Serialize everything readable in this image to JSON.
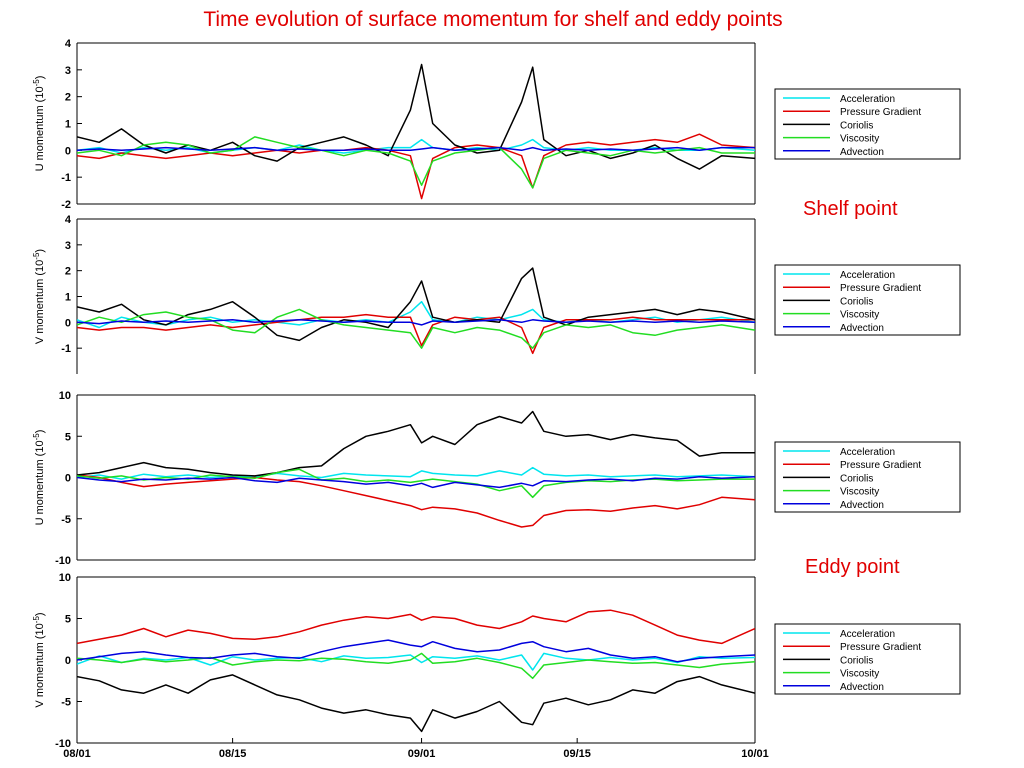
{
  "title": "Time evolution of surface momentum for shelf and eddy points",
  "annotations": {
    "shelf": "Shelf point",
    "eddy": "Eddy point"
  },
  "legend_entries": [
    {
      "name": "Acceleration",
      "color": "#00e5ee"
    },
    {
      "name": "Pressure Gradient",
      "color": "#e00000"
    },
    {
      "name": "Coriolis",
      "color": "#000000"
    },
    {
      "name": "Viscosity",
      "color": "#22dd22"
    },
    {
      "name": "Advection",
      "color": "#0000dd"
    }
  ],
  "chart_data": [
    {
      "type": "line",
      "ylabel": "U momentum (10^-5)",
      "ylim": [
        -2,
        4
      ],
      "yticks": [
        -2,
        -1,
        0,
        1,
        2,
        3,
        4
      ],
      "xticks": [],
      "grid": false,
      "legend_position": "right",
      "x": [
        0,
        2,
        4,
        6,
        8,
        10,
        12,
        14,
        16,
        18,
        20,
        22,
        24,
        26,
        28,
        30,
        31,
        32,
        34,
        36,
        38,
        40,
        41,
        42,
        44,
        46,
        48,
        50,
        52,
        54,
        56,
        58,
        61
      ],
      "series": [
        {
          "name": "Acceleration",
          "color": "#00e5ee",
          "values": [
            0.0,
            0.1,
            -0.1,
            0.1,
            0.0,
            0.1,
            -0.1,
            0.0,
            0.1,
            0.0,
            0.2,
            0.0,
            -0.1,
            0.0,
            0.1,
            0.1,
            0.4,
            0.1,
            0.0,
            0.1,
            0.0,
            0.2,
            0.4,
            0.1,
            0.0,
            0.1,
            0.0,
            0.0,
            0.1,
            0.0,
            0.0,
            0.1,
            0.0
          ]
        },
        {
          "name": "Pressure Gradient",
          "color": "#e00000",
          "values": [
            -0.2,
            -0.3,
            -0.1,
            -0.2,
            -0.3,
            -0.2,
            -0.1,
            -0.2,
            -0.1,
            0.0,
            -0.1,
            0.0,
            0.0,
            0.1,
            0.0,
            -0.2,
            -1.8,
            -0.3,
            0.1,
            0.2,
            0.1,
            -0.2,
            -1.4,
            -0.2,
            0.2,
            0.3,
            0.2,
            0.3,
            0.4,
            0.3,
            0.6,
            0.2,
            0.1
          ]
        },
        {
          "name": "Coriolis",
          "color": "#000000",
          "values": [
            0.5,
            0.3,
            0.8,
            0.2,
            -0.1,
            0.2,
            0.0,
            0.3,
            -0.2,
            -0.4,
            0.1,
            0.3,
            0.5,
            0.2,
            -0.2,
            1.5,
            3.2,
            1.0,
            0.2,
            -0.1,
            0.0,
            1.8,
            3.1,
            0.4,
            -0.2,
            0.0,
            -0.3,
            -0.1,
            0.2,
            -0.3,
            -0.7,
            -0.2,
            -0.3
          ]
        },
        {
          "name": "Viscosity",
          "color": "#22dd22",
          "values": [
            -0.1,
            0.0,
            -0.2,
            0.2,
            0.3,
            0.2,
            -0.1,
            0.0,
            0.5,
            0.3,
            0.1,
            0.0,
            -0.2,
            0.0,
            -0.1,
            -0.4,
            -1.3,
            -0.4,
            -0.1,
            0.0,
            0.1,
            -0.7,
            -1.4,
            -0.3,
            0.0,
            -0.1,
            -0.2,
            0.0,
            -0.1,
            0.0,
            0.1,
            -0.1,
            -0.1
          ]
        },
        {
          "name": "Advection",
          "color": "#0000dd",
          "values": [
            0.0,
            0.05,
            0.0,
            0.05,
            0.1,
            0.05,
            0.0,
            0.05,
            0.1,
            0.0,
            0.05,
            0.0,
            0.0,
            0.05,
            0.0,
            0.0,
            0.05,
            0.1,
            0.0,
            0.05,
            0.1,
            0.0,
            0.1,
            0.0,
            0.05,
            0.0,
            0.05,
            0.0,
            0.05,
            0.1,
            0.0,
            0.1,
            0.1
          ]
        }
      ]
    },
    {
      "type": "line",
      "ylabel": "V momentum (10^-5)",
      "ylim": [
        -2,
        4
      ],
      "yticks": [
        -1,
        0,
        1,
        2,
        3,
        4
      ],
      "xticks": [],
      "grid": false,
      "legend_position": "right",
      "x": [
        0,
        2,
        4,
        6,
        8,
        10,
        12,
        14,
        16,
        18,
        20,
        22,
        24,
        26,
        28,
        30,
        31,
        32,
        34,
        36,
        38,
        40,
        41,
        42,
        44,
        46,
        48,
        50,
        52,
        54,
        56,
        58,
        61
      ],
      "series": [
        {
          "name": "Acceleration",
          "color": "#00e5ee",
          "values": [
            0.1,
            -0.2,
            0.2,
            0.0,
            -0.1,
            0.1,
            0.2,
            0.0,
            0.1,
            0.0,
            -0.1,
            0.1,
            0.0,
            0.1,
            0.0,
            0.4,
            0.8,
            0.1,
            0.0,
            0.2,
            0.1,
            0.3,
            0.5,
            0.1,
            0.0,
            0.1,
            0.0,
            0.1,
            0.2,
            0.0,
            0.1,
            0.2,
            0.0
          ]
        },
        {
          "name": "Pressure Gradient",
          "color": "#e00000",
          "values": [
            -0.2,
            -0.3,
            -0.2,
            -0.2,
            -0.3,
            -0.2,
            -0.1,
            -0.2,
            -0.1,
            0.0,
            0.1,
            0.2,
            0.2,
            0.3,
            0.2,
            0.2,
            -0.9,
            -0.1,
            0.2,
            0.1,
            0.2,
            -0.2,
            -1.2,
            -0.2,
            0.1,
            0.1,
            0.1,
            0.2,
            0.1,
            0.1,
            0.1,
            0.1,
            0.1
          ]
        },
        {
          "name": "Coriolis",
          "color": "#000000",
          "values": [
            0.6,
            0.4,
            0.7,
            0.1,
            -0.1,
            0.3,
            0.5,
            0.8,
            0.2,
            -0.5,
            -0.7,
            -0.2,
            0.1,
            0.0,
            -0.2,
            0.8,
            1.6,
            0.2,
            0.0,
            0.1,
            0.0,
            1.7,
            2.1,
            0.2,
            -0.1,
            0.2,
            0.3,
            0.4,
            0.5,
            0.3,
            0.5,
            0.4,
            0.1
          ]
        },
        {
          "name": "Viscosity",
          "color": "#22dd22",
          "values": [
            -0.1,
            0.2,
            0.0,
            0.3,
            0.4,
            0.2,
            0.1,
            -0.3,
            -0.4,
            0.2,
            0.5,
            0.1,
            -0.1,
            -0.2,
            -0.3,
            -0.4,
            -1.0,
            -0.2,
            -0.4,
            -0.2,
            -0.3,
            -0.6,
            -1.0,
            -0.4,
            -0.1,
            -0.2,
            -0.1,
            -0.4,
            -0.5,
            -0.3,
            -0.2,
            -0.1,
            -0.3
          ]
        },
        {
          "name": "Advection",
          "color": "#0000dd",
          "values": [
            0.0,
            -0.05,
            0.05,
            0.0,
            0.05,
            0.0,
            0.05,
            0.1,
            0.0,
            0.05,
            0.1,
            0.05,
            0.0,
            0.05,
            0.0,
            0.0,
            -0.1,
            0.05,
            0.0,
            0.05,
            0.1,
            0.0,
            0.1,
            0.05,
            0.0,
            0.05,
            0.0,
            0.05,
            0.0,
            0.05,
            0.0,
            0.05,
            0.0
          ]
        }
      ]
    },
    {
      "type": "line",
      "ylabel": "U momentum (10^-5)",
      "ylim": [
        -10,
        10
      ],
      "yticks": [
        -10,
        -5,
        0,
        5,
        10
      ],
      "xticks": [],
      "grid": false,
      "legend_position": "right",
      "x": [
        0,
        2,
        4,
        6,
        8,
        10,
        12,
        14,
        16,
        18,
        20,
        22,
        24,
        26,
        28,
        30,
        31,
        32,
        34,
        36,
        38,
        40,
        41,
        42,
        44,
        46,
        48,
        50,
        52,
        54,
        56,
        58,
        61
      ],
      "series": [
        {
          "name": "Acceleration",
          "color": "#00e5ee",
          "values": [
            0.0,
            0.3,
            -0.2,
            0.4,
            0.1,
            0.3,
            0.0,
            0.2,
            0.1,
            0.5,
            0.2,
            0.0,
            0.5,
            0.3,
            0.2,
            0.1,
            0.8,
            0.5,
            0.3,
            0.2,
            0.8,
            0.3,
            1.2,
            0.4,
            0.2,
            0.3,
            0.1,
            0.2,
            0.3,
            0.1,
            0.2,
            0.3,
            0.1
          ]
        },
        {
          "name": "Pressure Gradient",
          "color": "#e00000",
          "values": [
            0.3,
            0.0,
            -0.6,
            -1.1,
            -0.8,
            -0.6,
            -0.4,
            -0.2,
            0.0,
            -0.3,
            -0.5,
            -1.0,
            -1.6,
            -2.2,
            -2.8,
            -3.4,
            -3.9,
            -3.6,
            -3.8,
            -4.3,
            -5.2,
            -6.0,
            -5.8,
            -4.6,
            -4.0,
            -3.9,
            -4.1,
            -3.7,
            -3.4,
            -3.8,
            -3.3,
            -2.4,
            -2.7
          ]
        },
        {
          "name": "Coriolis",
          "color": "#000000",
          "values": [
            0.3,
            0.6,
            1.2,
            1.8,
            1.2,
            1.0,
            0.6,
            0.3,
            0.2,
            0.6,
            1.2,
            1.4,
            3.5,
            5.0,
            5.6,
            6.4,
            4.2,
            5.0,
            4.0,
            6.4,
            7.4,
            6.6,
            8.0,
            5.6,
            5.0,
            5.2,
            4.6,
            5.2,
            4.8,
            4.5,
            2.6,
            3.0,
            3.0
          ]
        },
        {
          "name": "Viscosity",
          "color": "#22dd22",
          "values": [
            0.2,
            -0.1,
            0.2,
            -0.3,
            0.0,
            -0.2,
            0.3,
            0.1,
            -0.1,
            0.6,
            1.0,
            -0.3,
            -0.1,
            -0.5,
            -0.3,
            -0.6,
            -0.4,
            -0.2,
            -0.5,
            -0.8,
            -1.6,
            -1.0,
            -2.4,
            -1.0,
            -0.6,
            -0.4,
            -0.5,
            -0.3,
            -0.2,
            -0.4,
            -0.3,
            -0.2,
            -0.2
          ]
        },
        {
          "name": "Advection",
          "color": "#0000dd",
          "values": [
            0.0,
            -0.3,
            -0.5,
            -0.2,
            -0.3,
            -0.1,
            -0.2,
            0.0,
            -0.4,
            -0.6,
            -0.1,
            -0.3,
            -0.5,
            -0.8,
            -0.6,
            -1.0,
            -0.7,
            -1.2,
            -0.6,
            -0.9,
            -1.2,
            -0.7,
            -1.0,
            -0.4,
            -0.5,
            -0.3,
            -0.2,
            -0.4,
            -0.1,
            -0.2,
            0.1,
            -0.1,
            0.1
          ]
        }
      ]
    },
    {
      "type": "line",
      "ylabel": "V momentum (10^-5)",
      "ylim": [
        -10,
        10
      ],
      "yticks": [
        -10,
        -5,
        0,
        5,
        10
      ],
      "xticks": [
        "08/01",
        "08/15",
        "09/01",
        "09/15",
        "10/01"
      ],
      "xtick_positions": [
        0,
        14,
        31,
        45,
        61
      ],
      "grid": false,
      "legend_position": "right",
      "x": [
        0,
        2,
        4,
        6,
        8,
        10,
        12,
        14,
        16,
        18,
        20,
        22,
        24,
        26,
        28,
        30,
        31,
        32,
        34,
        36,
        38,
        40,
        41,
        42,
        44,
        46,
        48,
        50,
        52,
        54,
        56,
        58,
        61
      ],
      "series": [
        {
          "name": "Acceleration",
          "color": "#00e5ee",
          "values": [
            -0.5,
            0.5,
            -0.3,
            0.2,
            0.0,
            0.3,
            -0.6,
            0.4,
            0.0,
            0.2,
            0.3,
            -0.2,
            0.5,
            0.2,
            0.3,
            0.6,
            -0.3,
            0.4,
            0.2,
            0.5,
            0.0,
            0.6,
            -1.2,
            0.8,
            0.2,
            0.0,
            0.3,
            0.0,
            0.2,
            -0.3,
            0.4,
            0.2,
            0.3
          ]
        },
        {
          "name": "Pressure Gradient",
          "color": "#e00000",
          "values": [
            2.0,
            2.5,
            3.0,
            3.8,
            2.8,
            3.6,
            3.2,
            2.6,
            2.5,
            2.8,
            3.4,
            4.2,
            4.8,
            5.2,
            5.0,
            5.5,
            4.8,
            5.2,
            5.0,
            4.2,
            3.8,
            4.6,
            5.3,
            5.0,
            4.6,
            5.8,
            6.0,
            5.4,
            4.2,
            3.0,
            2.4,
            2.0,
            3.8
          ]
        },
        {
          "name": "Coriolis",
          "color": "#000000",
          "values": [
            -2.0,
            -2.5,
            -3.6,
            -4.0,
            -3.0,
            -4.0,
            -2.4,
            -1.8,
            -3.0,
            -4.2,
            -4.8,
            -5.8,
            -6.4,
            -6.0,
            -6.6,
            -7.0,
            -8.6,
            -6.0,
            -7.0,
            -6.2,
            -5.0,
            -7.5,
            -7.8,
            -5.2,
            -4.6,
            -5.4,
            -4.8,
            -3.6,
            -4.0,
            -2.6,
            -2.0,
            -3.0,
            -4.0
          ]
        },
        {
          "name": "Viscosity",
          "color": "#22dd22",
          "values": [
            0.2,
            0.0,
            -0.3,
            0.1,
            -0.2,
            0.0,
            0.3,
            -0.6,
            -0.2,
            0.0,
            -0.1,
            0.2,
            0.1,
            -0.2,
            -0.4,
            0.0,
            0.8,
            -0.4,
            -0.2,
            0.2,
            -0.3,
            -1.0,
            -2.2,
            -0.6,
            -0.3,
            0.0,
            -0.2,
            -0.4,
            -0.3,
            -0.6,
            -0.9,
            -0.5,
            -0.2
          ]
        },
        {
          "name": "Advection",
          "color": "#0000dd",
          "values": [
            0.0,
            0.4,
            0.8,
            1.0,
            0.6,
            0.3,
            0.2,
            0.6,
            0.8,
            0.4,
            0.2,
            1.0,
            1.6,
            2.0,
            2.4,
            1.8,
            1.6,
            2.2,
            1.4,
            1.0,
            1.2,
            2.0,
            2.2,
            1.6,
            1.0,
            1.4,
            0.6,
            0.2,
            0.4,
            -0.2,
            0.2,
            0.4,
            0.6
          ]
        }
      ]
    }
  ]
}
